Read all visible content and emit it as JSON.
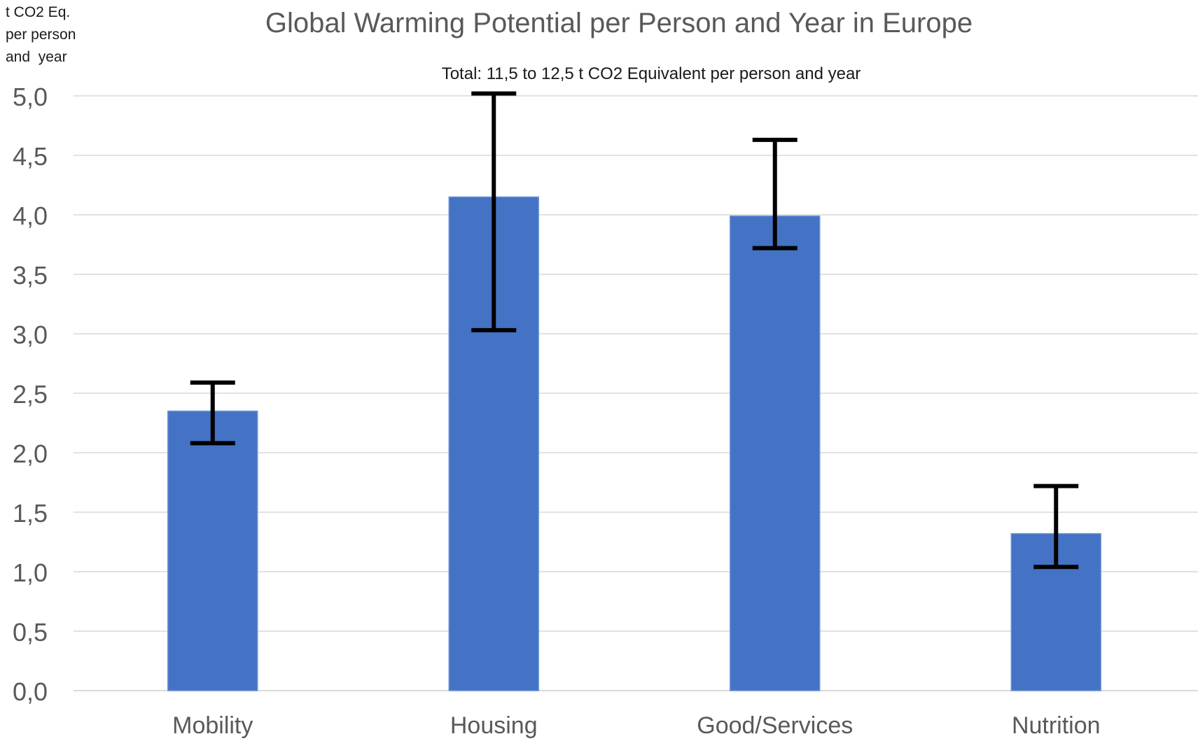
{
  "chart_data": {
    "type": "bar",
    "title": "Global Warming Potential per Person and Year in Europe",
    "subtitle": "Total: 11,5 to 12,5 t CO2 Equivalent per person and year",
    "ylabel_lines": [
      "t CO2 Eq.",
      "per person",
      "and  year"
    ],
    "xlabel": "",
    "categories": [
      "Mobility",
      "Housing",
      "Good/Services",
      "Nutrition"
    ],
    "values": [
      2.35,
      4.15,
      3.99,
      1.32
    ],
    "error_low": [
      2.08,
      3.03,
      3.72,
      1.04
    ],
    "error_high": [
      2.59,
      5.02,
      4.63,
      1.72
    ],
    "ylim": [
      0,
      5
    ],
    "yticks": [
      0,
      0.5,
      1,
      1.5,
      2,
      2.5,
      3,
      3.5,
      4,
      4.5,
      5
    ],
    "ytick_labels": [
      "0,0",
      "0,5",
      "1,0",
      "1,5",
      "2,0",
      "2,5",
      "3,0",
      "3,5",
      "4,0",
      "4,5",
      "5,0"
    ],
    "grid": true,
    "legend": "none",
    "colors": {
      "bar": "#4472c4",
      "bar_edge": "#6f94d8",
      "error_bar": "#000000",
      "grid": "#d9d9d9",
      "axis": "#d9d9d9"
    }
  }
}
